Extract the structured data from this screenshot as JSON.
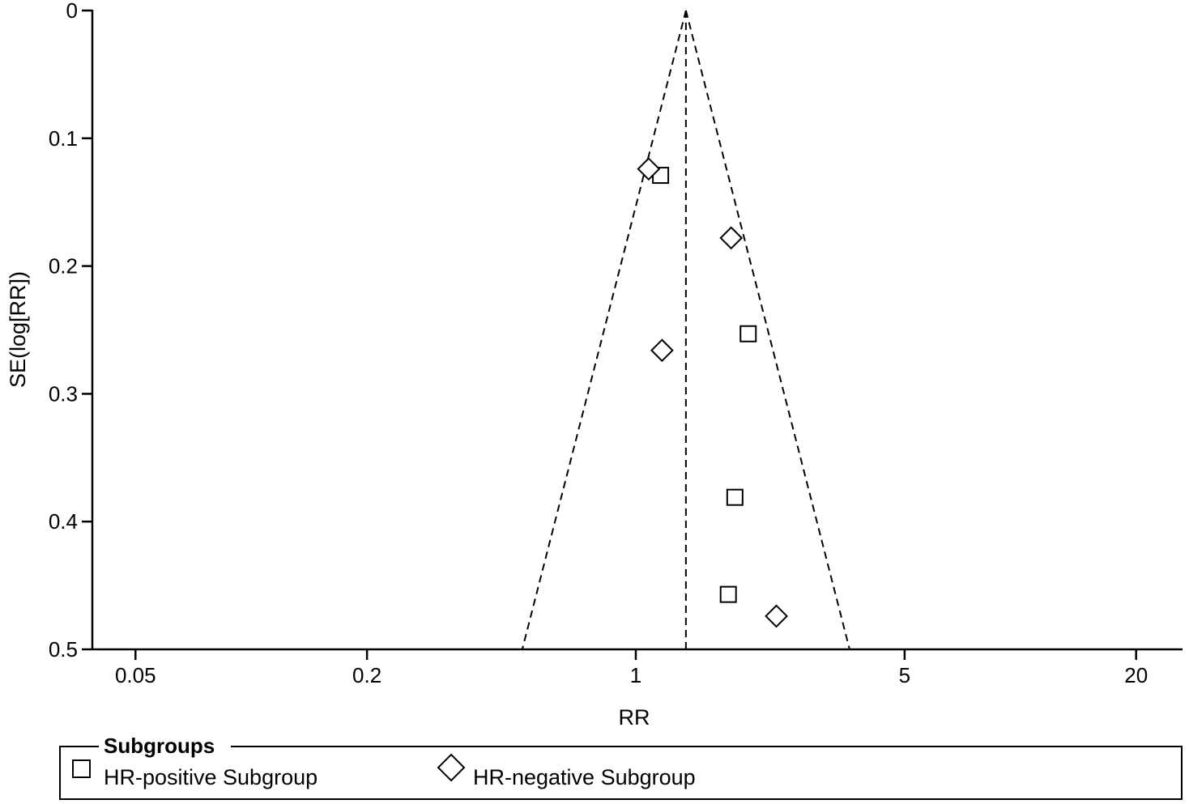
{
  "chart_data": {
    "type": "scatter",
    "subtype": "funnel-plot",
    "xlabel": "RR",
    "ylabel": "SE(log[RR])",
    "x_scale": "log",
    "x_ticks": [
      {
        "value": 0.05,
        "label": "0.05"
      },
      {
        "value": 0.2,
        "label": "0.2"
      },
      {
        "value": 1,
        "label": "1"
      },
      {
        "value": 5,
        "label": "5"
      },
      {
        "value": 20,
        "label": "20"
      }
    ],
    "y_ticks": [
      {
        "value": 0,
        "label": "0"
      },
      {
        "value": 0.1,
        "label": "0.1"
      },
      {
        "value": 0.2,
        "label": "0.2"
      },
      {
        "value": 0.3,
        "label": "0.3"
      },
      {
        "value": 0.4,
        "label": "0.4"
      },
      {
        "value": 0.5,
        "label": "0.5"
      }
    ],
    "ylim": [
      0,
      0.5
    ],
    "y_reversed": true,
    "pooled_estimate": 1.35,
    "funnel_limit_multiplier": 1.96,
    "legend": {
      "title": "Subgroups",
      "placement": "bottom"
    },
    "series": [
      {
        "name": "HR-positive Subgroup",
        "marker": "square",
        "points": [
          {
            "x": 1.16,
            "y": 0.129
          },
          {
            "x": 1.96,
            "y": 0.253
          },
          {
            "x": 1.81,
            "y": 0.381
          },
          {
            "x": 1.74,
            "y": 0.457
          }
        ]
      },
      {
        "name": "HR-negative Subgroup",
        "marker": "diamond",
        "points": [
          {
            "x": 1.08,
            "y": 0.124
          },
          {
            "x": 1.77,
            "y": 0.178
          },
          {
            "x": 1.17,
            "y": 0.266
          },
          {
            "x": 2.32,
            "y": 0.474
          }
        ]
      }
    ]
  }
}
